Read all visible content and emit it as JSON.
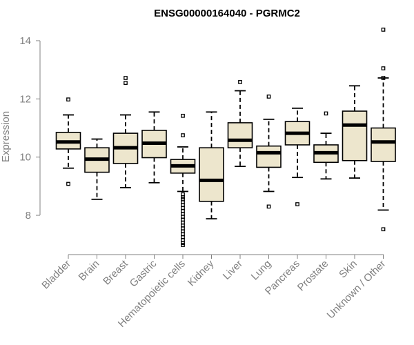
{
  "chart_data": {
    "type": "boxplot",
    "title": "ENSG00000164040 - PGRMC2",
    "xlabel": "",
    "ylabel": "Expression",
    "ylim": [
      6.8,
      14.5
    ],
    "yticks": [
      8,
      10,
      12,
      14
    ],
    "grid": false,
    "box_fill": "#ede6cd",
    "categories": [
      "Bladder",
      "Brain",
      "Breast",
      "Gastric",
      "Hematopoietic cells",
      "Kidney",
      "Liver",
      "Lung",
      "Pancreas",
      "Prostate",
      "Skin",
      "Unknown / Other"
    ],
    "series": [
      {
        "name": "Bladder",
        "whisker_low": 9.62,
        "q1": 10.28,
        "median": 10.52,
        "q3": 10.85,
        "whisker_high": 11.45,
        "outliers": [
          11.98,
          9.08
        ]
      },
      {
        "name": "Brain",
        "whisker_low": 8.55,
        "q1": 9.48,
        "median": 9.93,
        "q3": 10.32,
        "whisker_high": 10.62,
        "outliers": []
      },
      {
        "name": "Breast",
        "whisker_low": 8.95,
        "q1": 9.78,
        "median": 10.32,
        "q3": 10.82,
        "whisker_high": 11.45,
        "outliers": [
          12.72,
          12.55
        ]
      },
      {
        "name": "Gastric",
        "whisker_low": 9.12,
        "q1": 9.98,
        "median": 10.48,
        "q3": 10.92,
        "whisker_high": 11.55,
        "outliers": []
      },
      {
        "name": "Hematopoietic cells",
        "whisker_low": 8.82,
        "q1": 9.45,
        "median": 9.7,
        "q3": 9.92,
        "whisker_high": 10.35,
        "outliers": [
          11.42,
          10.75,
          8.72,
          8.62,
          8.55,
          8.45,
          8.35,
          8.25,
          8.15,
          8.05,
          7.95,
          7.85,
          7.75,
          7.65,
          7.55,
          7.45,
          7.35,
          7.25,
          7.15,
          7.05,
          6.98
        ]
      },
      {
        "name": "Kidney",
        "whisker_low": 7.88,
        "q1": 8.48,
        "median": 9.2,
        "q3": 10.32,
        "whisker_high": 11.55,
        "outliers": []
      },
      {
        "name": "Liver",
        "whisker_low": 9.68,
        "q1": 10.32,
        "median": 10.58,
        "q3": 11.18,
        "whisker_high": 12.28,
        "outliers": [
          12.58
        ]
      },
      {
        "name": "Lung",
        "whisker_low": 8.82,
        "q1": 9.65,
        "median": 10.15,
        "q3": 10.38,
        "whisker_high": 11.3,
        "outliers": [
          12.08,
          8.3
        ]
      },
      {
        "name": "Pancreas",
        "whisker_low": 9.3,
        "q1": 10.42,
        "median": 10.82,
        "q3": 11.22,
        "whisker_high": 11.68,
        "outliers": [
          8.38
        ]
      },
      {
        "name": "Prostate",
        "whisker_low": 9.25,
        "q1": 9.82,
        "median": 10.15,
        "q3": 10.42,
        "whisker_high": 10.82,
        "outliers": [
          11.5
        ]
      },
      {
        "name": "Skin",
        "whisker_low": 9.28,
        "q1": 9.88,
        "median": 11.1,
        "q3": 11.58,
        "whisker_high": 12.45,
        "outliers": []
      },
      {
        "name": "Unknown / Other",
        "whisker_low": 8.18,
        "q1": 9.85,
        "median": 10.52,
        "q3": 11.0,
        "whisker_high": 12.72,
        "outliers": [
          14.38,
          13.05,
          12.72,
          7.52
        ]
      }
    ]
  }
}
